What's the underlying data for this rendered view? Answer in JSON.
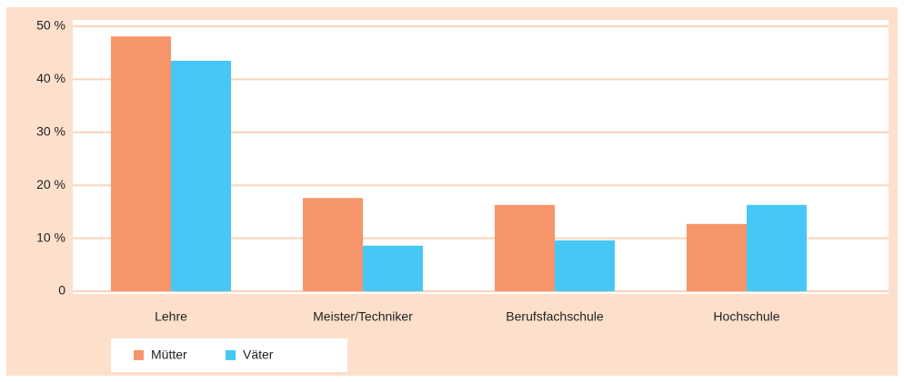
{
  "chart_data": {
    "type": "bar",
    "categories": [
      "Lehre",
      "Meister/Techniker",
      "Berufsfachschule",
      "Hochschule"
    ],
    "series": [
      {
        "name": "Mütter",
        "color": "#f7956a",
        "values": [
          48.1,
          17.6,
          16.3,
          12.7
        ]
      },
      {
        "name": "Väter",
        "color": "#45c8f5",
        "values": [
          43.5,
          8.6,
          9.6,
          16.3
        ]
      }
    ],
    "ylim": [
      0,
      51.2
    ],
    "yticks": [
      0,
      {
        "value": 10,
        "label": "10 %"
      },
      {
        "value": 20,
        "label": "20 %"
      },
      {
        "value": 30,
        "label": "30 %"
      },
      {
        "value": 40,
        "label": "40 %"
      },
      {
        "value": 50,
        "label": "50 %"
      }
    ],
    "grid": true
  }
}
